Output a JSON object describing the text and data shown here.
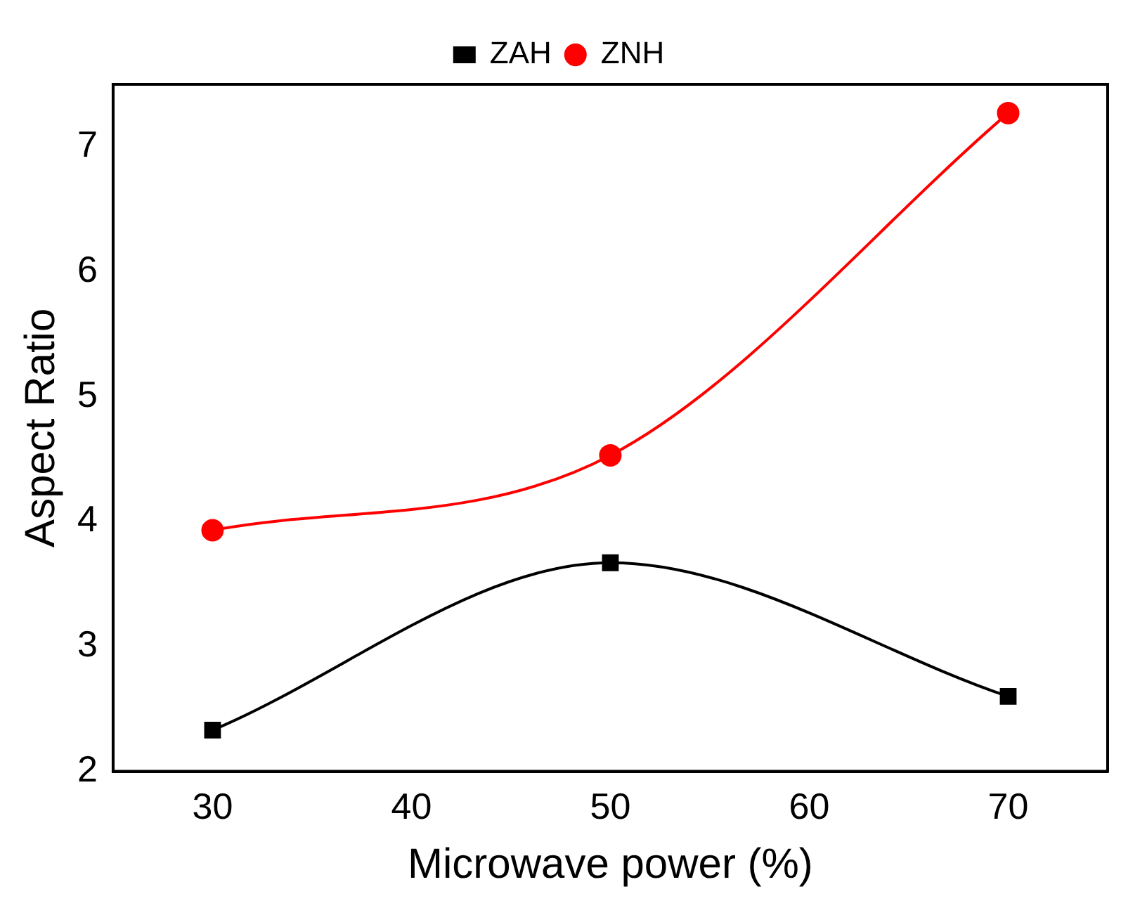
{
  "chart_data": {
    "type": "line",
    "xlabel": "Microwave power (%)",
    "ylabel": "Aspect Ratio",
    "x": [
      30,
      50,
      70
    ],
    "series": [
      {
        "name": "ZAH",
        "color": "#000000",
        "marker": "square",
        "values": [
          2.33,
          3.67,
          2.6
        ]
      },
      {
        "name": "ZNH",
        "color": "#ff0000",
        "marker": "circle",
        "values": [
          3.93,
          4.53,
          7.27
        ]
      }
    ],
    "xlim": [
      25,
      75
    ],
    "xticks": [
      30,
      40,
      50,
      60,
      70
    ],
    "ylim": [
      2,
      7.5
    ],
    "yticks": [
      2,
      3,
      4,
      5,
      6,
      7
    ],
    "grid": false,
    "legend": "top"
  }
}
